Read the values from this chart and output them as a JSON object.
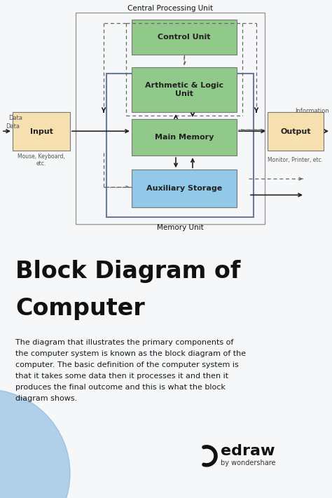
{
  "fig_w": 4.74,
  "fig_h": 7.11,
  "dpi": 100,
  "bg_diagram": "#f5f7f9",
  "bg_bottom": "#e8edf5",
  "green_color": "#90c98a",
  "blue_color": "#92c8e8",
  "peach_color": "#f7e0b0",
  "cpu_border": "#999999",
  "mem_border": "#6a7a9a",
  "box_border": "#777777",
  "arrow_color": "#222222",
  "dash_color": "#666666",
  "text_dark": "#111111",
  "text_gray": "#555555",
  "title_cpu": "Central Processing Unit",
  "title_memory": "Memory Unit",
  "box_control": "Control Unit",
  "box_alu": "Arthmetic & Logic\nUnit",
  "box_memory": "Main Memory",
  "box_aux": "Auxiliary Storage",
  "box_input": "Input",
  "box_output": "Output",
  "label_data": "Data",
  "label_info": "Information",
  "label_mouse": "Mouse, Keyboard,\netc.",
  "label_monitor": "Monitor, Printer, etc.",
  "heading_line1": "Block Diagram of",
  "heading_line2": "Computer",
  "body_text": "The diagram that illustrates the primary components of\nthe computer system is known as the block diagram of the\ncomputer. The basic definition of the computer system is\nthat it takes some data then it processes it and then it\nproduces the final outcome and this is what the block\ndiagram shows.",
  "edraw_text": "edraw",
  "wondershare_text": "by wondershare",
  "circle_color": "#7aaedb",
  "circle_alpha": 0.55
}
